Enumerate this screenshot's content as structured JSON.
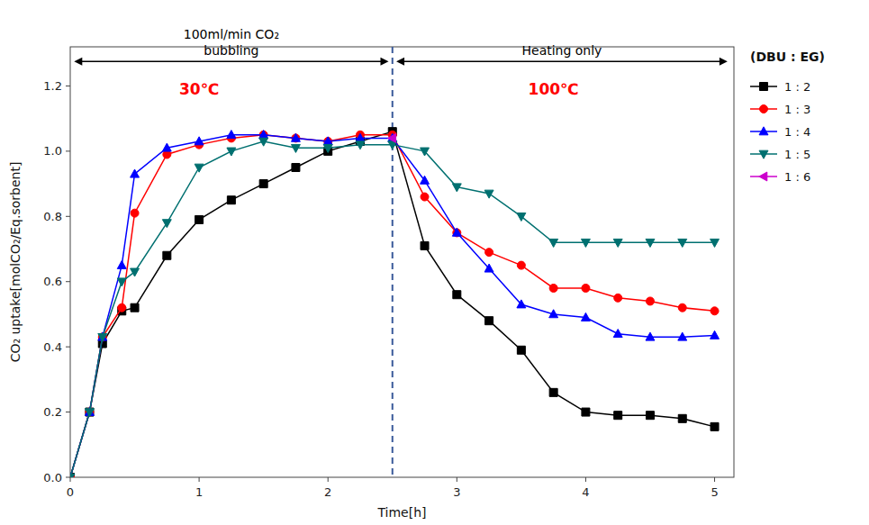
{
  "chart_data": {
    "type": "line",
    "xlabel": "Time[h]",
    "ylabel": "CO₂ uptake[molCO₂/Eq.sorbent]",
    "legend_title": "(DBU : EG)",
    "legend": "right",
    "grid": false,
    "xlim": [
      0,
      5.15
    ],
    "ylim": [
      0.0,
      1.32
    ],
    "xticks": [
      0,
      1,
      2,
      3,
      4,
      5
    ],
    "yticks": [
      {
        "value": 0.0,
        "label": "0.0"
      },
      0.2,
      0.4,
      0.6,
      0.8,
      {
        "value": 1.0,
        "label": "1.0"
      },
      1.2
    ],
    "series": [
      {
        "name": "1 : 2",
        "color": "#000000",
        "marker": "square",
        "line_style": "solid",
        "x": [
          0,
          0.15,
          0.25,
          0.4,
          0.5,
          0.75,
          1.0,
          1.25,
          1.5,
          1.75,
          2.0,
          2.25,
          2.5,
          2.75,
          3.0,
          3.25,
          3.5,
          3.75,
          4.0,
          4.25,
          4.5,
          4.75,
          5.0
        ],
        "values": [
          0,
          0.2,
          0.41,
          0.51,
          0.52,
          0.68,
          0.79,
          0.85,
          0.9,
          0.95,
          1.0,
          1.03,
          1.06,
          0.71,
          0.56,
          0.48,
          0.39,
          0.26,
          0.2,
          0.19,
          0.19,
          0.18,
          0.155
        ]
      },
      {
        "name": "1 : 3",
        "color": "#ff0000",
        "marker": "circle",
        "line_style": "solid",
        "x": [
          0,
          0.15,
          0.25,
          0.4,
          0.5,
          0.75,
          1.0,
          1.25,
          1.5,
          1.75,
          2.0,
          2.25,
          2.5,
          2.75,
          3.0,
          3.25,
          3.5,
          3.75,
          4.0,
          4.25,
          4.5,
          4.75,
          5.0
        ],
        "values": [
          0,
          0.2,
          0.43,
          0.52,
          0.81,
          0.99,
          1.02,
          1.04,
          1.05,
          1.04,
          1.03,
          1.05,
          1.05,
          0.86,
          0.75,
          0.69,
          0.65,
          0.58,
          0.58,
          0.55,
          0.54,
          0.52,
          0.51
        ]
      },
      {
        "name": "1 : 4",
        "color": "#0000ff",
        "marker": "triangle-up",
        "line_style": "solid",
        "x": [
          0,
          0.15,
          0.25,
          0.4,
          0.5,
          0.75,
          1.0,
          1.25,
          1.5,
          1.75,
          2.0,
          2.25,
          2.5,
          2.75,
          3.0,
          3.25,
          3.5,
          3.75,
          4.0,
          4.25,
          4.5,
          4.75,
          5.0
        ],
        "values": [
          0,
          0.2,
          0.43,
          0.65,
          0.93,
          1.01,
          1.03,
          1.05,
          1.05,
          1.04,
          1.03,
          1.04,
          1.04,
          0.91,
          0.75,
          0.64,
          0.53,
          0.5,
          0.49,
          0.44,
          0.43,
          0.43,
          0.435
        ]
      },
      {
        "name": "1 : 5",
        "color": "#007070",
        "marker": "triangle-down",
        "line_style": "solid",
        "x": [
          0,
          0.15,
          0.25,
          0.4,
          0.5,
          0.75,
          1.0,
          1.25,
          1.5,
          1.75,
          2.0,
          2.25,
          2.5,
          2.75,
          3.0,
          3.25,
          3.5,
          3.75,
          4.0,
          4.25,
          4.5,
          4.75,
          5.0
        ],
        "values": [
          0,
          0.2,
          0.43,
          0.6,
          0.63,
          0.78,
          0.95,
          1.0,
          1.03,
          1.01,
          1.01,
          1.02,
          1.02,
          1.0,
          0.89,
          0.87,
          0.8,
          0.72,
          0.72,
          0.72,
          0.72,
          0.72,
          0.72
        ]
      },
      {
        "name": "1 : 6",
        "color": "#cc00cc",
        "marker": "triangle-left",
        "line_style": "none",
        "x": [
          2.5
        ],
        "values": [
          1.04
        ]
      }
    ],
    "vlines": [
      {
        "x": 2.5,
        "color": "#3a5a9a",
        "line_style": "dashed"
      }
    ],
    "annotations": [
      {
        "text": "30℃",
        "x": 1.0,
        "y": 1.19,
        "color": "red"
      },
      {
        "text": "100℃",
        "x": 3.75,
        "y": 1.19,
        "color": "red"
      }
    ],
    "arrows": [
      {
        "x": [
          0.03,
          2.47
        ],
        "y": 1.275,
        "labels": [
          "100ml/min CO₂",
          "bubbling"
        ]
      },
      {
        "x": [
          2.53,
          5.1
        ],
        "y": 1.275,
        "labels": [
          "Heating only"
        ]
      }
    ]
  }
}
